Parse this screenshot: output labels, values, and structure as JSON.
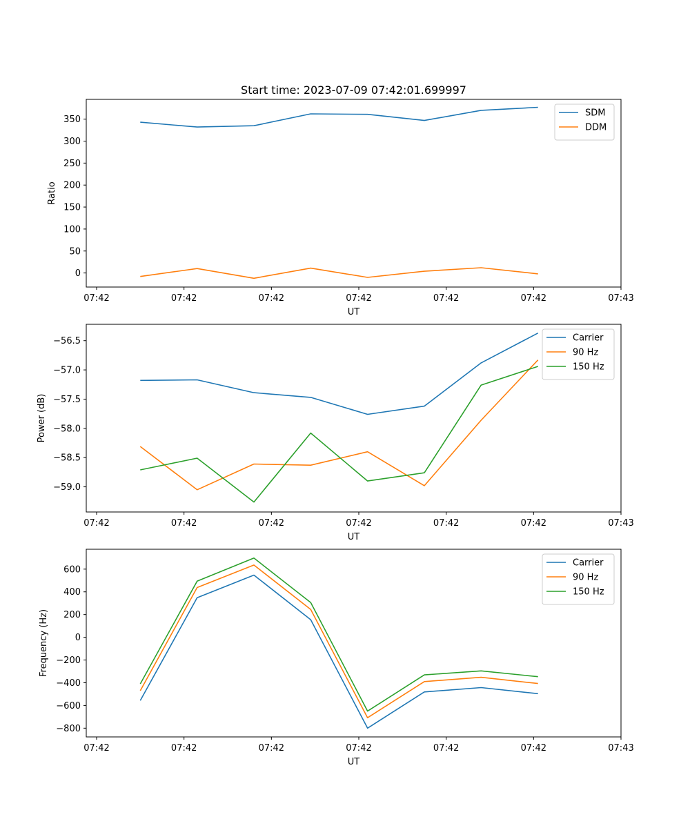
{
  "chart_data": [
    {
      "type": "line",
      "title": "Start time: 2023-07-09 07:42:01.699997",
      "xlabel": "UT",
      "ylabel": "Ratio",
      "xlim": [
        0,
        6.0
      ],
      "ylim": [
        -32,
        395
      ],
      "x": [
        0.5,
        1.15,
        1.8,
        2.45,
        3.1,
        3.75,
        4.4,
        5.05
      ],
      "xticks": [
        0,
        1,
        2,
        3,
        4,
        5,
        6
      ],
      "xtick_labels": [
        "07:42",
        "07:42",
        "07:42",
        "07:42",
        "07:42",
        "07:42",
        "07:43"
      ],
      "yticks": [
        0,
        50,
        100,
        150,
        200,
        250,
        300,
        350
      ],
      "ytick_labels": [
        "0",
        "50",
        "100",
        "150",
        "200",
        "250",
        "300",
        "350"
      ],
      "legend_position": "top-right",
      "series": [
        {
          "name": "SDM",
          "color": "#1f77b4",
          "values": [
            343,
            332,
            335,
            362,
            361,
            347,
            370,
            377
          ]
        },
        {
          "name": "DDM",
          "color": "#ff7f0e",
          "values": [
            -8,
            10,
            -12,
            11,
            -10,
            4,
            12,
            -2
          ]
        }
      ]
    },
    {
      "type": "line",
      "title": "",
      "xlabel": "UT",
      "ylabel": "Power (dB)",
      "xlim": [
        0,
        6.0
      ],
      "ylim": [
        -59.43,
        -56.22
      ],
      "x": [
        0.5,
        1.15,
        1.8,
        2.45,
        3.1,
        3.75,
        4.4,
        5.05
      ],
      "xticks": [
        0,
        1,
        2,
        3,
        4,
        5,
        6
      ],
      "xtick_labels": [
        "07:42",
        "07:42",
        "07:42",
        "07:42",
        "07:42",
        "07:42",
        "07:43"
      ],
      "yticks": [
        -59.0,
        -58.5,
        -58.0,
        -57.5,
        -57.0,
        -56.5
      ],
      "ytick_labels": [
        "−59.0",
        "−58.5",
        "−58.0",
        "−57.5",
        "−57.0",
        "−56.5"
      ],
      "legend_position": "top-right",
      "series": [
        {
          "name": "Carrier",
          "color": "#1f77b4",
          "values": [
            -57.18,
            -57.17,
            -57.39,
            -57.47,
            -57.76,
            -57.62,
            -56.88,
            -56.37
          ]
        },
        {
          "name": "90 Hz",
          "color": "#ff7f0e",
          "values": [
            -58.31,
            -59.05,
            -58.61,
            -58.63,
            -58.4,
            -58.98,
            -57.86,
            -56.83
          ]
        },
        {
          "name": "150 Hz",
          "color": "#2ca02c",
          "values": [
            -58.71,
            -58.51,
            -59.26,
            -58.08,
            -58.9,
            -58.76,
            -57.26,
            -56.94
          ]
        }
      ]
    },
    {
      "type": "line",
      "title": "",
      "xlabel": "UT",
      "ylabel": "Frequency (Hz)",
      "xlim": [
        0,
        6.0
      ],
      "ylim": [
        -877,
        775
      ],
      "x": [
        0.5,
        1.15,
        1.8,
        2.45,
        3.1,
        3.75,
        4.4,
        5.05
      ],
      "xticks": [
        0,
        1,
        2,
        3,
        4,
        5,
        6
      ],
      "xtick_labels": [
        "07:42",
        "07:42",
        "07:42",
        "07:42",
        "07:42",
        "07:42",
        "07:43"
      ],
      "yticks": [
        -800,
        -600,
        -400,
        -200,
        0,
        200,
        400,
        600
      ],
      "ytick_labels": [
        "−800",
        "−600",
        "−400",
        "−200",
        "0",
        "200",
        "400",
        "600"
      ],
      "legend_position": "top-right",
      "series": [
        {
          "name": "Carrier",
          "color": "#1f77b4",
          "values": [
            -557,
            348,
            547,
            155,
            -800,
            -481,
            -443,
            -496
          ]
        },
        {
          "name": "90 Hz",
          "color": "#ff7f0e",
          "values": [
            -470,
            438,
            636,
            245,
            -708,
            -390,
            -352,
            -407
          ]
        },
        {
          "name": "150 Hz",
          "color": "#2ca02c",
          "values": [
            -410,
            494,
            697,
            306,
            -650,
            -331,
            -296,
            -347
          ]
        }
      ]
    }
  ]
}
